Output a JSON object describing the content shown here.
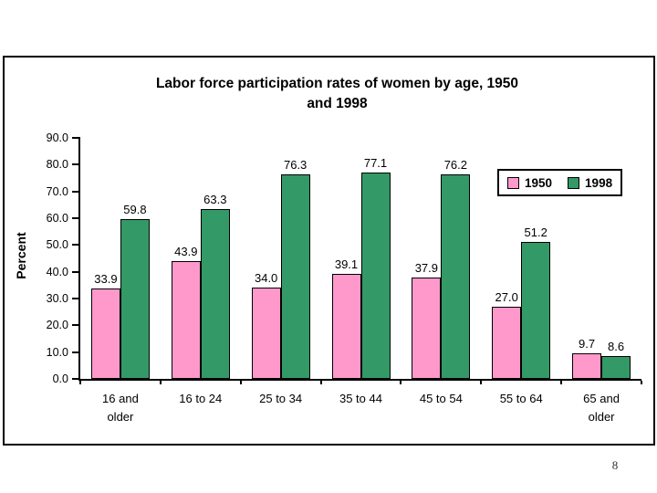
{
  "page_number": "8",
  "chart": {
    "title_lines": [
      "Labor force participation rates of women by age, 1950",
      "and 1998"
    ]
  },
  "chart_data": {
    "type": "bar",
    "title": "Labor force participation rates of women by age, 1950 and 1998",
    "xlabel": "",
    "ylabel": "Percent",
    "ylim": [
      0,
      90
    ],
    "ytick_step": 10,
    "ytick_labels": [
      "0.0",
      "10.0",
      "20.0",
      "30.0",
      "40.0",
      "50.0",
      "60.0",
      "70.0",
      "80.0",
      "90.0"
    ],
    "grid": false,
    "legend_position": "inside-top-right",
    "categories": [
      "16 and\nolder",
      "16 to 24",
      "25 to 34",
      "35 to 44",
      "45 to 54",
      "55 to 64",
      "65 and\nolder"
    ],
    "series": [
      {
        "name": "1950",
        "color": "#FF99CC",
        "values": [
          33.9,
          43.9,
          34.0,
          39.1,
          37.9,
          27.0,
          9.7
        ],
        "value_labels": [
          "33.9",
          "43.9",
          "34.0",
          "39.1",
          "37.9",
          "27.0",
          "9.7"
        ]
      },
      {
        "name": "1998",
        "color": "#339966",
        "values": [
          59.8,
          63.3,
          76.3,
          77.1,
          76.2,
          51.2,
          8.6
        ],
        "value_labels": [
          "59.8",
          "63.3",
          "76.3",
          "77.1",
          "76.2",
          "51.2",
          "8.6"
        ]
      }
    ]
  }
}
